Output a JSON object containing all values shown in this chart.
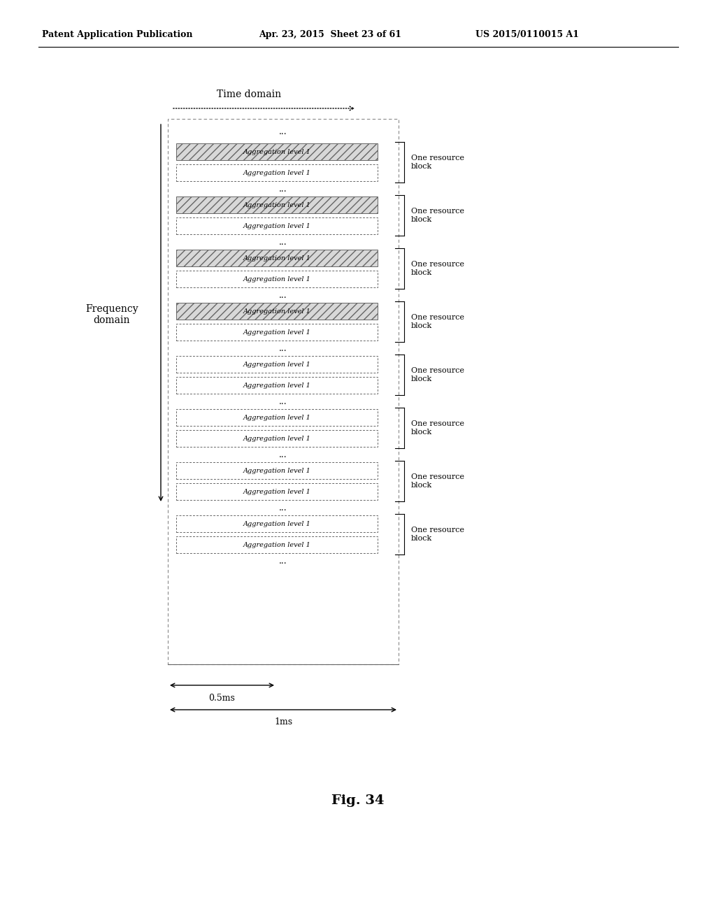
{
  "fig_label": "Fig. 34",
  "time_domain_label": "Time domain",
  "freq_domain_label": "Frequency\ndomain",
  "cell_label": "Aggregation level 1",
  "one_resource_block": "One resource\nblock",
  "ms_label_half": "0.5ms",
  "ms_label_full": "1ms",
  "bg_color": "#ffffff",
  "text_color": "#000000",
  "header_left": "Patent Application Publication",
  "header_mid": "Apr. 23, 2015  Sheet 23 of 61",
  "header_right": "US 2015/0110015 A1",
  "groups": [
    {
      "hatched": true
    },
    {
      "hatched": true
    },
    {
      "hatched": true
    },
    {
      "hatched": true
    },
    {
      "hatched": false
    },
    {
      "hatched": false
    },
    {
      "hatched": false
    },
    {
      "hatched": false
    }
  ]
}
